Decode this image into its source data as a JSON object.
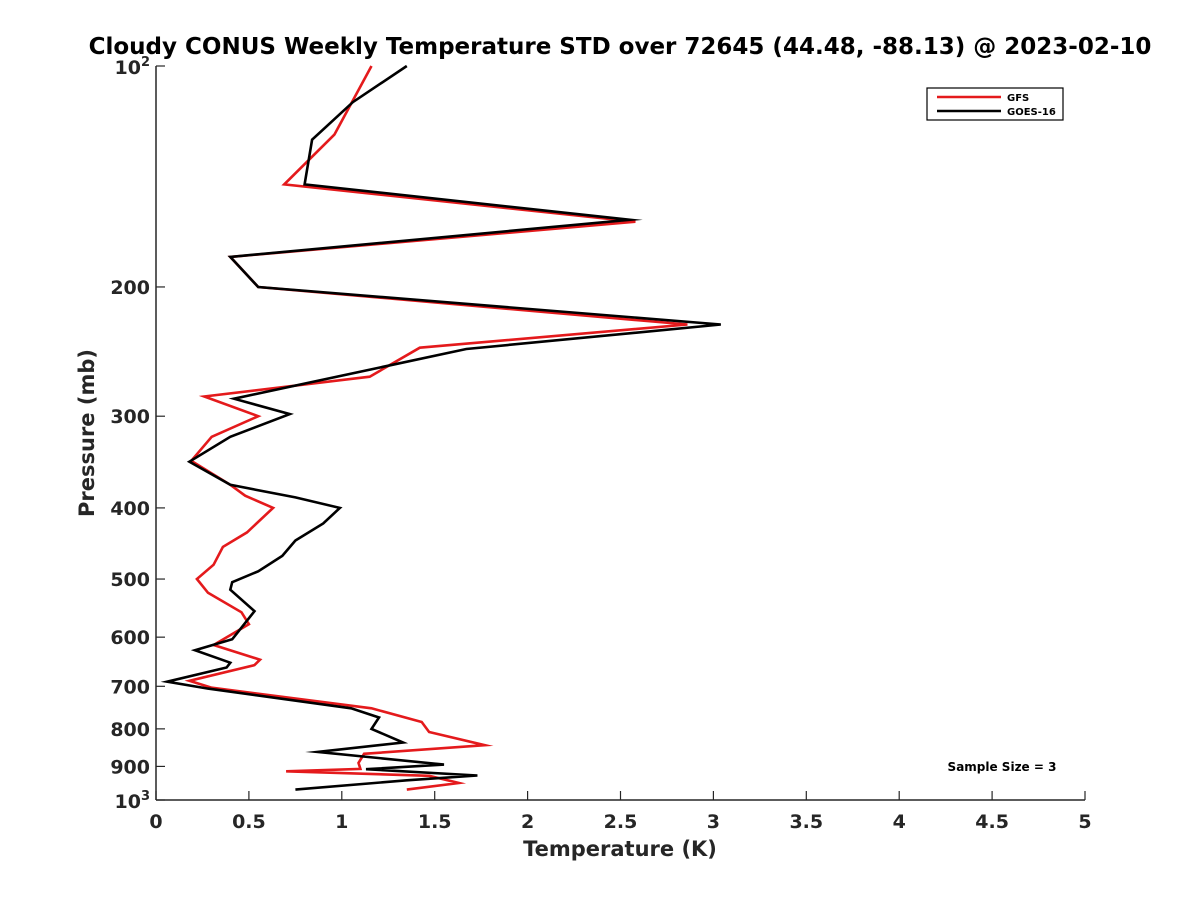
{
  "chart_data": {
    "type": "line",
    "title": "Cloudy CONUS Weekly Temperature STD over 72645 (44.48, -88.13) @ 2023-02-10",
    "xlabel": "Temperature (K)",
    "ylabel": "Pressure (mb)",
    "xlim": [
      0,
      5
    ],
    "ylim": [
      100,
      1000
    ],
    "y_scale": "log",
    "y_reversed": true,
    "xticks": [
      "0",
      "0.5",
      "1",
      "1.5",
      "2",
      "2.5",
      "3",
      "3.5",
      "4",
      "4.5",
      "5"
    ],
    "yticks": [
      {
        "value": 100,
        "base": "10",
        "exp": "2"
      },
      {
        "value": 200,
        "label": "200"
      },
      {
        "value": 300,
        "label": "300"
      },
      {
        "value": 400,
        "label": "400"
      },
      {
        "value": 500,
        "label": "500"
      },
      {
        "value": 600,
        "label": "600"
      },
      {
        "value": 700,
        "label": "700"
      },
      {
        "value": 800,
        "label": "800"
      },
      {
        "value": 900,
        "label": "900"
      },
      {
        "value": 1000,
        "base": "10",
        "exp": "3"
      }
    ],
    "grid": false,
    "legend_position": "top-right",
    "annotation": "Sample Size = 3",
    "series": [
      {
        "name": "GFS",
        "color": "#e41a1c",
        "x": [
          1.16,
          0.96,
          0.69,
          2.58,
          0.4,
          0.55,
          2.86,
          1.42,
          1.15,
          0.26,
          0.55,
          0.3,
          0.19,
          0.4,
          0.48,
          0.63,
          0.49,
          0.36,
          0.31,
          0.22,
          0.28,
          0.46,
          0.5,
          0.31,
          0.56,
          0.53,
          0.18,
          0.3,
          1.16,
          1.43,
          1.47,
          1.77,
          1.12,
          1.09,
          1.1,
          0.7,
          1.47,
          1.63,
          1.35
        ],
        "y": [
          100,
          124,
          145,
          163,
          182,
          200,
          225,
          242,
          265,
          282,
          300,
          320,
          345,
          372,
          385,
          400,
          432,
          452,
          478,
          500,
          522,
          555,
          576,
          615,
          644,
          655,
          688,
          703,
          750,
          783,
          808,
          842,
          865,
          890,
          907,
          914,
          927,
          948,
          968
        ]
      },
      {
        "name": "GOES-16",
        "color": "#000000",
        "x": [
          1.35,
          1.06,
          0.84,
          0.8,
          2.55,
          0.4,
          0.55,
          3.04,
          1.67,
          0.42,
          0.72,
          0.4,
          0.18,
          0.4,
          0.75,
          0.99,
          0.9,
          0.75,
          0.68,
          0.55,
          0.41,
          0.4,
          0.53,
          0.41,
          0.21,
          0.4,
          0.38,
          0.06,
          0.28,
          1.05,
          1.2,
          1.16,
          1.33,
          0.87,
          1.55,
          1.13,
          1.73,
          1.35,
          0.75
        ],
        "y": [
          100,
          112,
          126,
          145,
          162,
          182,
          200,
          225,
          243,
          284,
          298,
          320,
          346,
          372,
          387,
          400,
          420,
          443,
          465,
          488,
          505,
          517,
          553,
          604,
          625,
          650,
          660,
          690,
          705,
          750,
          772,
          800,
          835,
          860,
          895,
          908,
          926,
          940,
          968
        ]
      }
    ]
  }
}
